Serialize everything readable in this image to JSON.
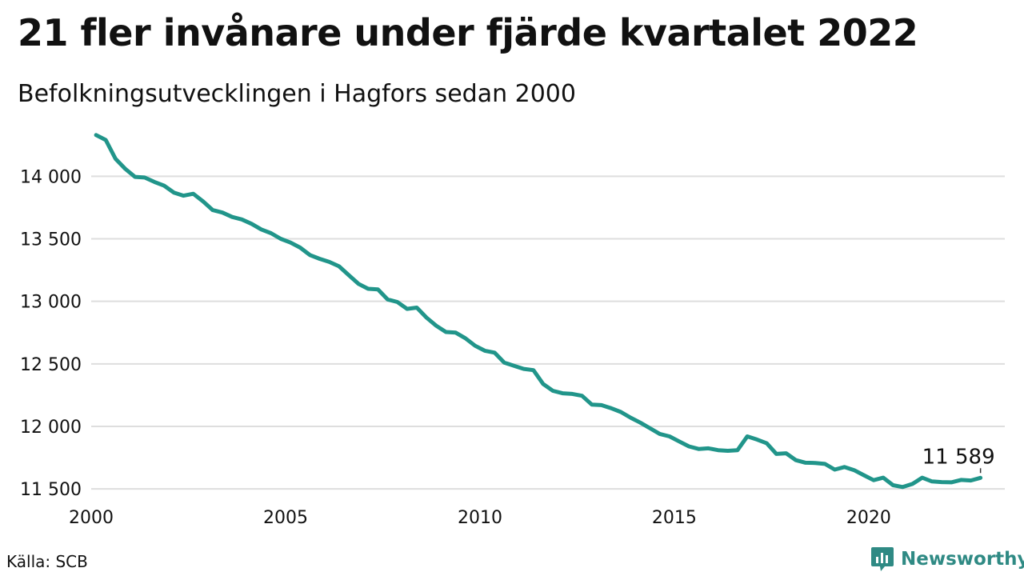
{
  "header": {
    "title": "21 fler invånare under fjärde kvartalet 2022",
    "subtitle": "Befolkningsutvecklingen i Hagfors sedan 2000"
  },
  "footer": {
    "source": "Källa: SCB",
    "brand": "Newsworthy",
    "brand_icon": "bar-chart-logo-icon",
    "brand_color": "#2f8a84"
  },
  "chart_data": {
    "type": "line",
    "title": "21 fler invånare under fjärde kvartalet 2022",
    "subtitle": "Befolkningsutvecklingen i Hagfors sedan 2000",
    "xlabel": "",
    "ylabel": "",
    "xlim": [
      2000,
      2023.5
    ],
    "ylim": [
      11450,
      14450
    ],
    "x_ticks": [
      2000,
      2005,
      2010,
      2015,
      2020
    ],
    "x_tick_labels": [
      "2000",
      "2005",
      "2010",
      "2015",
      "2020"
    ],
    "y_ticks": [
      11500,
      12000,
      12500,
      13000,
      13500,
      14000
    ],
    "y_tick_labels": [
      "11 500",
      "12 000",
      "12 500",
      "13 000",
      "13 500",
      "14 000"
    ],
    "grid": "horizontal",
    "line_color": "#21958a",
    "end_label": "11 589",
    "series": [
      {
        "values": [
          {
            "x": "2000 Q1",
            "y": 14330
          },
          {
            "x": "2000 Q2",
            "y": 14290
          },
          {
            "x": "2000 Q3",
            "y": 14140
          },
          {
            "x": "2000 Q4",
            "y": 14060
          },
          {
            "x": "2001 Q1",
            "y": 13995
          },
          {
            "x": "2001 Q2",
            "y": 13990
          },
          {
            "x": "2001 Q3",
            "y": 13955
          },
          {
            "x": "2001 Q4",
            "y": 13925
          },
          {
            "x": "2002 Q1",
            "y": 13870
          },
          {
            "x": "2002 Q2",
            "y": 13845
          },
          {
            "x": "2002 Q3",
            "y": 13860
          },
          {
            "x": "2002 Q4",
            "y": 13800
          },
          {
            "x": "2003 Q1",
            "y": 13730
          },
          {
            "x": "2003 Q2",
            "y": 13710
          },
          {
            "x": "2003 Q3",
            "y": 13675
          },
          {
            "x": "2003 Q4",
            "y": 13655
          },
          {
            "x": "2004 Q1",
            "y": 13620
          },
          {
            "x": "2004 Q2",
            "y": 13575
          },
          {
            "x": "2004 Q3",
            "y": 13545
          },
          {
            "x": "2004 Q4",
            "y": 13500
          },
          {
            "x": "2005 Q1",
            "y": 13470
          },
          {
            "x": "2005 Q2",
            "y": 13430
          },
          {
            "x": "2005 Q3",
            "y": 13370
          },
          {
            "x": "2005 Q4",
            "y": 13340
          },
          {
            "x": "2006 Q1",
            "y": 13315
          },
          {
            "x": "2006 Q2",
            "y": 13280
          },
          {
            "x": "2006 Q3",
            "y": 13210
          },
          {
            "x": "2006 Q4",
            "y": 13140
          },
          {
            "x": "2007 Q1",
            "y": 13100
          },
          {
            "x": "2007 Q2",
            "y": 13095
          },
          {
            "x": "2007 Q3",
            "y": 13015
          },
          {
            "x": "2007 Q4",
            "y": 12995
          },
          {
            "x": "2008 Q1",
            "y": 12940
          },
          {
            "x": "2008 Q2",
            "y": 12950
          },
          {
            "x": "2008 Q3",
            "y": 12870
          },
          {
            "x": "2008 Q4",
            "y": 12805
          },
          {
            "x": "2009 Q1",
            "y": 12755
          },
          {
            "x": "2009 Q2",
            "y": 12750
          },
          {
            "x": "2009 Q3",
            "y": 12705
          },
          {
            "x": "2009 Q4",
            "y": 12645
          },
          {
            "x": "2010 Q1",
            "y": 12605
          },
          {
            "x": "2010 Q2",
            "y": 12590
          },
          {
            "x": "2010 Q3",
            "y": 12510
          },
          {
            "x": "2010 Q4",
            "y": 12485
          },
          {
            "x": "2011 Q1",
            "y": 12460
          },
          {
            "x": "2011 Q2",
            "y": 12450
          },
          {
            "x": "2011 Q3",
            "y": 12340
          },
          {
            "x": "2011 Q4",
            "y": 12285
          },
          {
            "x": "2012 Q1",
            "y": 12265
          },
          {
            "x": "2012 Q2",
            "y": 12260
          },
          {
            "x": "2012 Q3",
            "y": 12245
          },
          {
            "x": "2012 Q4",
            "y": 12175
          },
          {
            "x": "2013 Q1",
            "y": 12170
          },
          {
            "x": "2013 Q2",
            "y": 12145
          },
          {
            "x": "2013 Q3",
            "y": 12115
          },
          {
            "x": "2013 Q4",
            "y": 12070
          },
          {
            "x": "2014 Q1",
            "y": 12030
          },
          {
            "x": "2014 Q2",
            "y": 11985
          },
          {
            "x": "2014 Q3",
            "y": 11940
          },
          {
            "x": "2014 Q4",
            "y": 11920
          },
          {
            "x": "2015 Q1",
            "y": 11880
          },
          {
            "x": "2015 Q2",
            "y": 11840
          },
          {
            "x": "2015 Q3",
            "y": 11820
          },
          {
            "x": "2015 Q4",
            "y": 11825
          },
          {
            "x": "2016 Q1",
            "y": 11810
          },
          {
            "x": "2016 Q2",
            "y": 11805
          },
          {
            "x": "2016 Q3",
            "y": 11810
          },
          {
            "x": "2016 Q4",
            "y": 11920
          },
          {
            "x": "2017 Q1",
            "y": 11895
          },
          {
            "x": "2017 Q2",
            "y": 11865
          },
          {
            "x": "2017 Q3",
            "y": 11780
          },
          {
            "x": "2017 Q4",
            "y": 11785
          },
          {
            "x": "2018 Q1",
            "y": 11730
          },
          {
            "x": "2018 Q2",
            "y": 11710
          },
          {
            "x": "2018 Q3",
            "y": 11708
          },
          {
            "x": "2018 Q4",
            "y": 11700
          },
          {
            "x": "2019 Q1",
            "y": 11655
          },
          {
            "x": "2019 Q2",
            "y": 11675
          },
          {
            "x": "2019 Q3",
            "y": 11650
          },
          {
            "x": "2019 Q4",
            "y": 11610
          },
          {
            "x": "2020 Q1",
            "y": 11570
          },
          {
            "x": "2020 Q2",
            "y": 11590
          },
          {
            "x": "2020 Q3",
            "y": 11530
          },
          {
            "x": "2020 Q4",
            "y": 11515
          },
          {
            "x": "2021 Q1",
            "y": 11540
          },
          {
            "x": "2021 Q2",
            "y": 11590
          },
          {
            "x": "2021 Q3",
            "y": 11560
          },
          {
            "x": "2021 Q4",
            "y": 11555
          },
          {
            "x": "2022 Q1",
            "y": 11553
          },
          {
            "x": "2022 Q2",
            "y": 11572
          },
          {
            "x": "2022 Q3",
            "y": 11568
          },
          {
            "x": "2022 Q4",
            "y": 11589
          }
        ]
      }
    ]
  }
}
